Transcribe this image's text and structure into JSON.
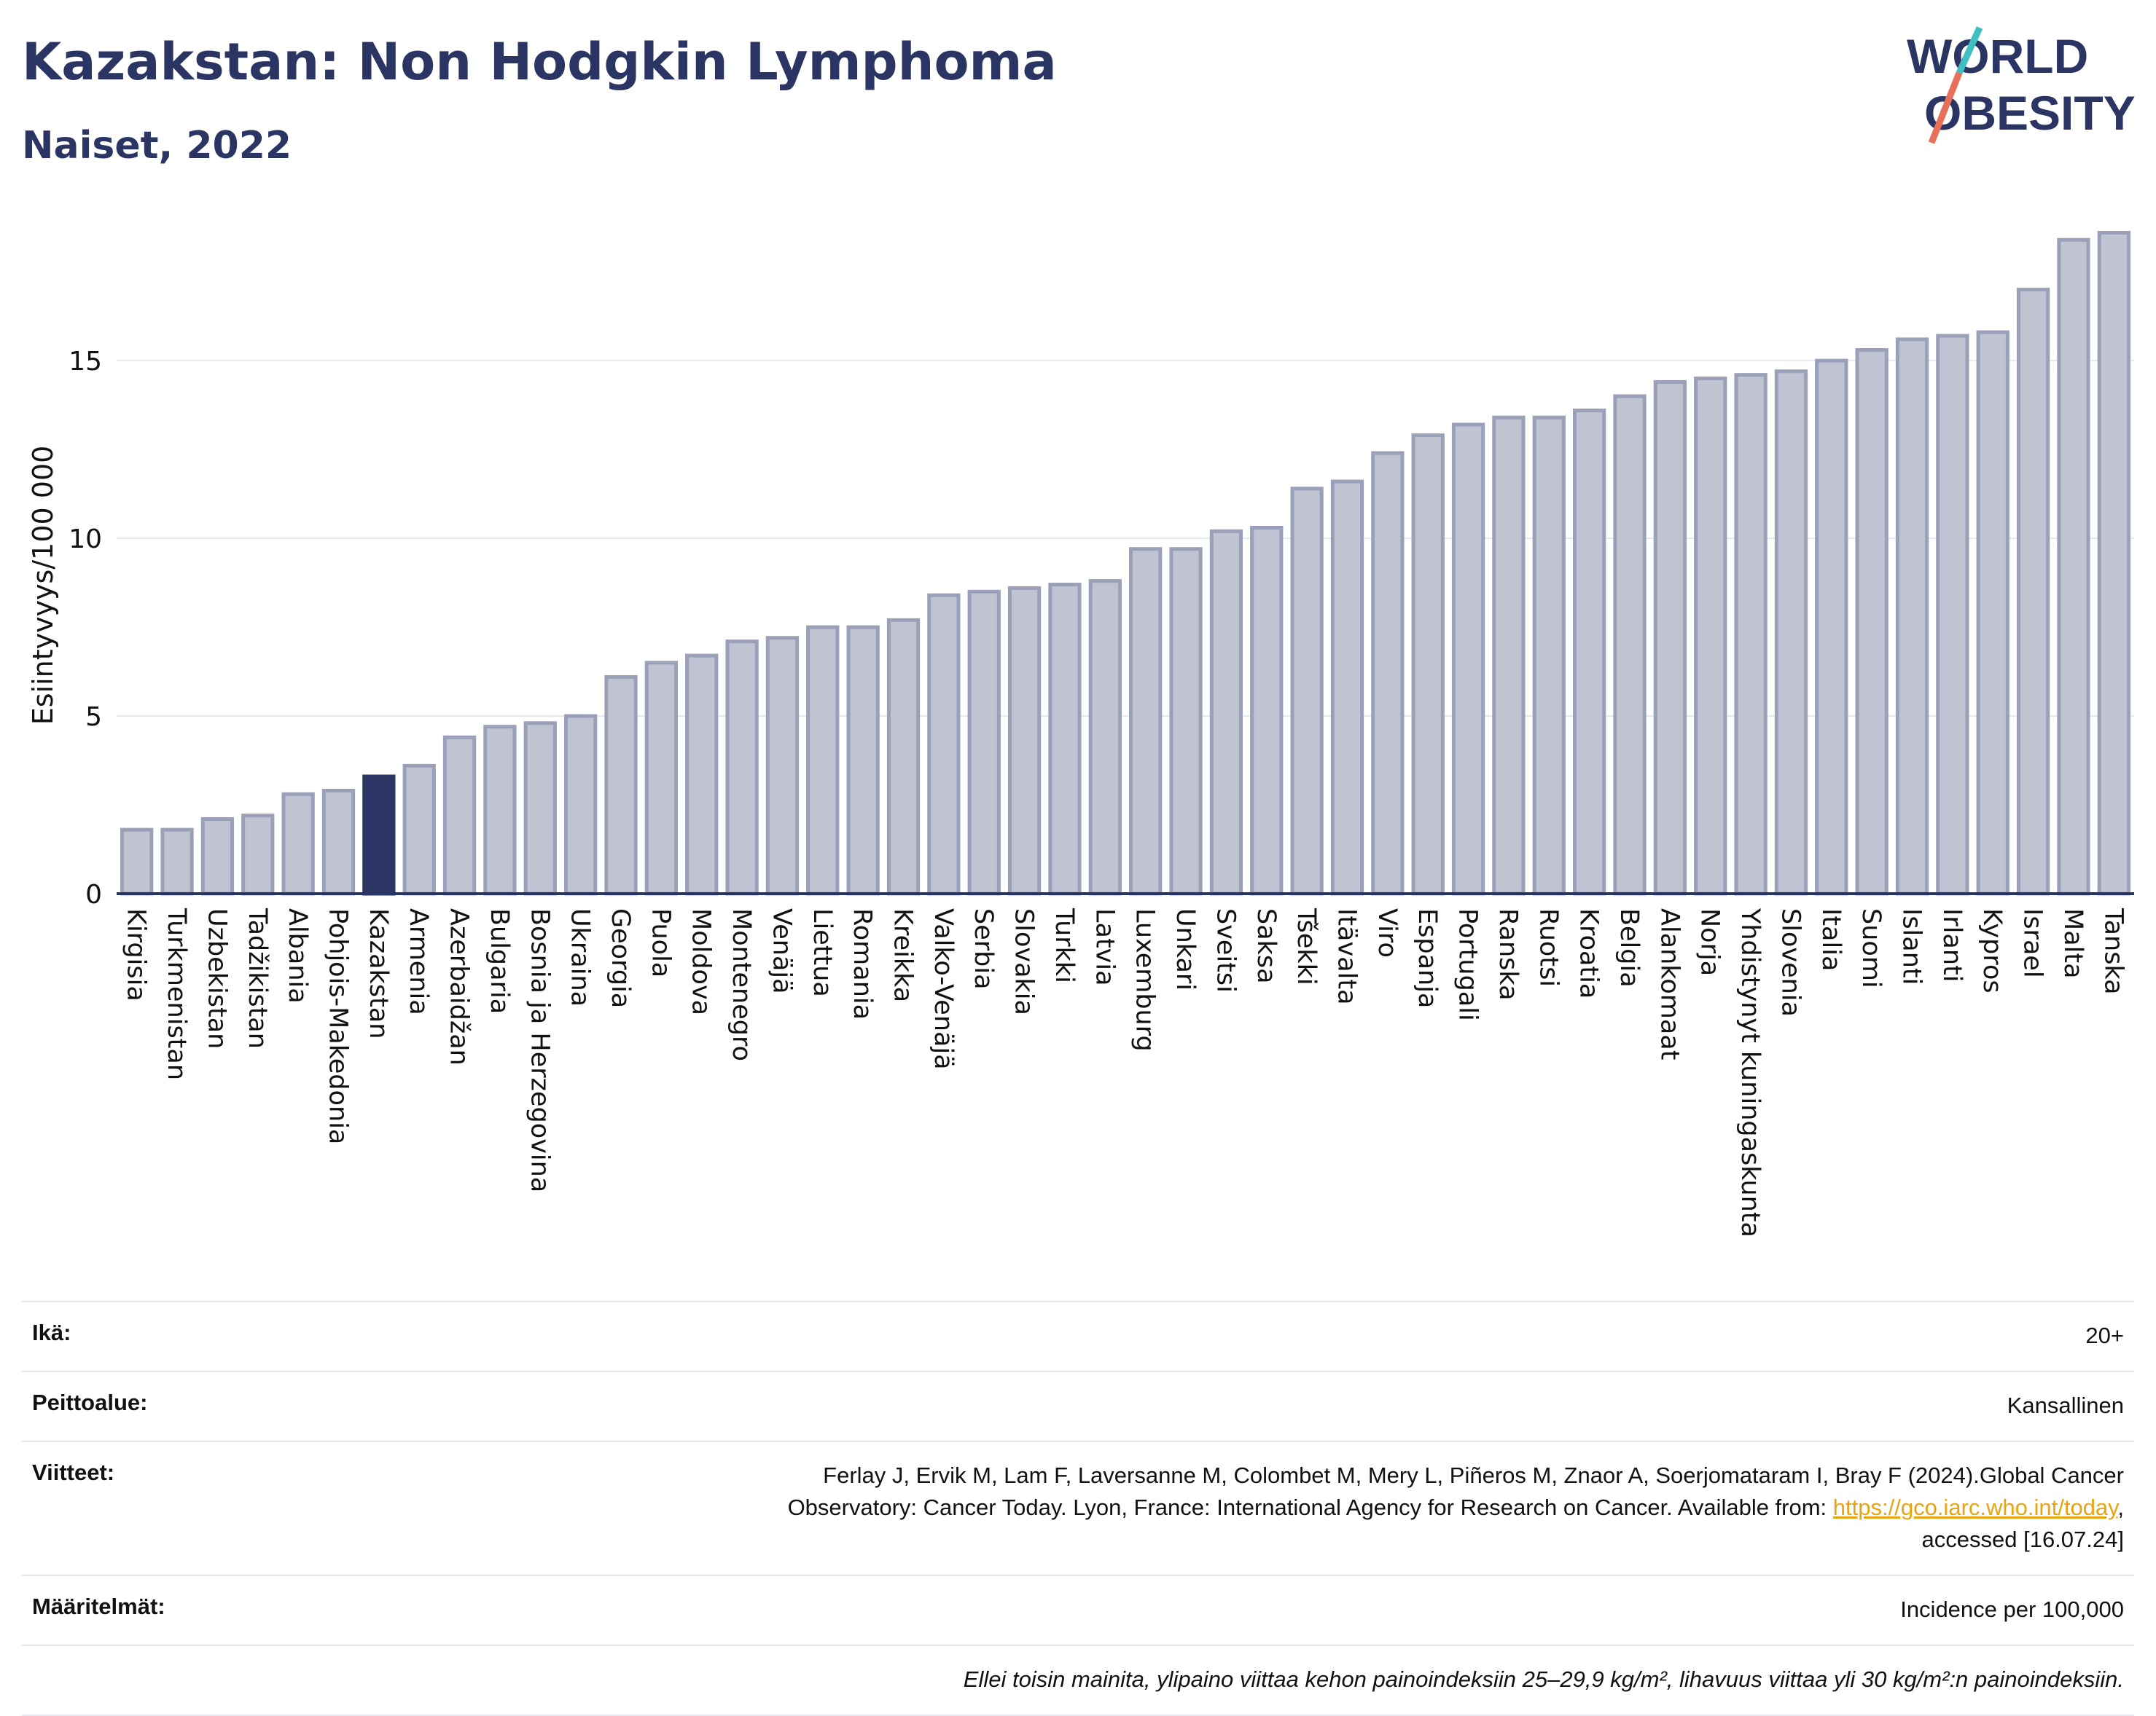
{
  "header": {
    "title": "Kazakstan: Non Hodgkin Lymphoma",
    "subtitle": "Naiset, 2022"
  },
  "logo": {
    "line1": "WORLD",
    "line2": "OBESITY"
  },
  "colors": {
    "title": "#2b3563",
    "bar": "#bfc3d2",
    "bar_stroke": "#9aa0b8",
    "highlight": "#2b3563",
    "logo_slash_top": "#3fbfbf",
    "logo_slash_bottom": "#e8705a"
  },
  "chart_data": {
    "type": "bar",
    "ylabel": "Esiintyvyys/100 000",
    "xlabel": "",
    "ylim": [
      0,
      19
    ],
    "yticks": [
      0,
      5,
      10,
      15
    ],
    "grid": true,
    "highlight": "Kazakstan",
    "categories": [
      "Kirgisia",
      "Turkmenistan",
      "Uzbekistan",
      "Tadžikistan",
      "Albania",
      "Pohjois-Makedonia",
      "Kazakstan",
      "Armenia",
      "Azerbaidžan",
      "Bulgaria",
      "Bosnia ja Herzegovina",
      "Ukraina",
      "Georgia",
      "Puola",
      "Moldova",
      "Montenegro",
      "Venäjä",
      "Liettua",
      "Romania",
      "Kreikka",
      "Valko-Venäjä",
      "Serbia",
      "Slovakia",
      "Turkki",
      "Latvia",
      "Luxemburg",
      "Unkari",
      "Sveitsi",
      "Saksa",
      "Tšekki",
      "Itävalta",
      "Viro",
      "Espanja",
      "Portugali",
      "Ranska",
      "Ruotsi",
      "Kroatia",
      "Belgia",
      "Alankomaat",
      "Norja",
      "Yhdistynyt kuningaskunta",
      "Slovenia",
      "Italia",
      "Suomi",
      "Islanti",
      "Irlanti",
      "Kypros",
      "Israel",
      "Malta",
      "Tanska"
    ],
    "values": [
      1.8,
      1.8,
      2.1,
      2.2,
      2.8,
      2.9,
      3.3,
      3.6,
      4.4,
      4.7,
      4.8,
      5.0,
      6.1,
      6.5,
      6.7,
      7.1,
      7.2,
      7.5,
      7.5,
      7.7,
      8.4,
      8.5,
      8.6,
      8.7,
      8.8,
      9.7,
      9.7,
      10.2,
      10.3,
      11.4,
      11.6,
      12.4,
      12.9,
      13.2,
      13.4,
      13.4,
      13.6,
      14.0,
      14.4,
      14.5,
      14.6,
      14.7,
      15.0,
      15.3,
      15.6,
      15.7,
      15.8,
      17.0,
      18.4,
      18.6
    ]
  },
  "meta": {
    "age_label": "Ikä:",
    "age_value": "20+",
    "coverage_label": "Peittoalue:",
    "coverage_value": "Kansallinen",
    "refs_label": "Viitteet:",
    "refs_line1": "Ferlay J, Ervik M, Lam F, Laversanne M, Colombet M, Mery L, Piñeros M, Znaor A, Soerjomataram I, Bray F (2024).Global Cancer",
    "refs_line2": "Observatory: Cancer Today. Lyon, France: International Agency for Research on Cancer. Available from: ",
    "refs_link": "https://gco.iarc.who.int/today",
    "refs_line2_end": ",",
    "refs_line3": "accessed [16.07.24]",
    "defs_label": "Määritelmät:",
    "defs_value": "Incidence per 100,000",
    "note": "Ellei toisin mainita, ylipaino viittaa kehon painoindeksiin 25–29,9 kg/m², lihavuus viittaa yli 30 kg/m²:n painoindeksiin."
  }
}
